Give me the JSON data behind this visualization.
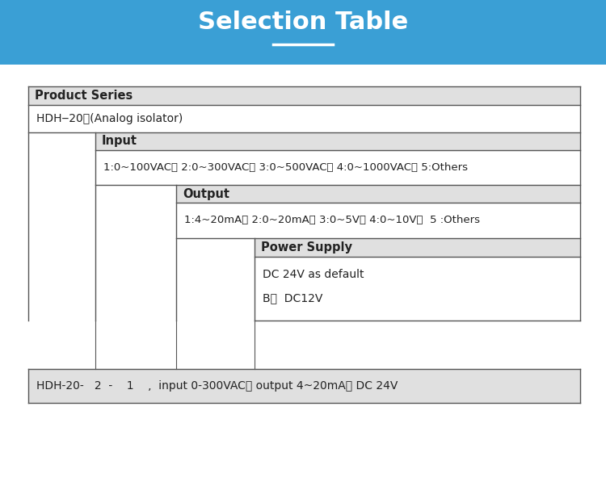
{
  "title": "Selection Table",
  "title_color": "#ffffff",
  "header_bg_color": "#3a9fd5",
  "fig_bg_color": "#ffffff",
  "cell_header_bg": "#e0e0e0",
  "cell_body_bg": "#ffffff",
  "border_color": "#555555",
  "product_series_label": "Product Series",
  "product_series_value": "HDH‒20　(Analog isolator)",
  "input_label": "Input",
  "input_value": "1:0~100VAC、 2:0~300VAC、 3:0~500VAC、 4:0~1000VAC、 5:Others",
  "output_label": "Output",
  "output_value": "1:4~20mA、 2:0~20mA、 3:0~5V、 4:0~10V、  5 :Others",
  "power_label": "Power Supply",
  "power_value1": "DC 24V as default",
  "power_value2": "B：  DC12V",
  "bottom_text": "HDH-20-   2  -    1    ,  input 0-300VAC， output 4~20mA， DC 24V"
}
